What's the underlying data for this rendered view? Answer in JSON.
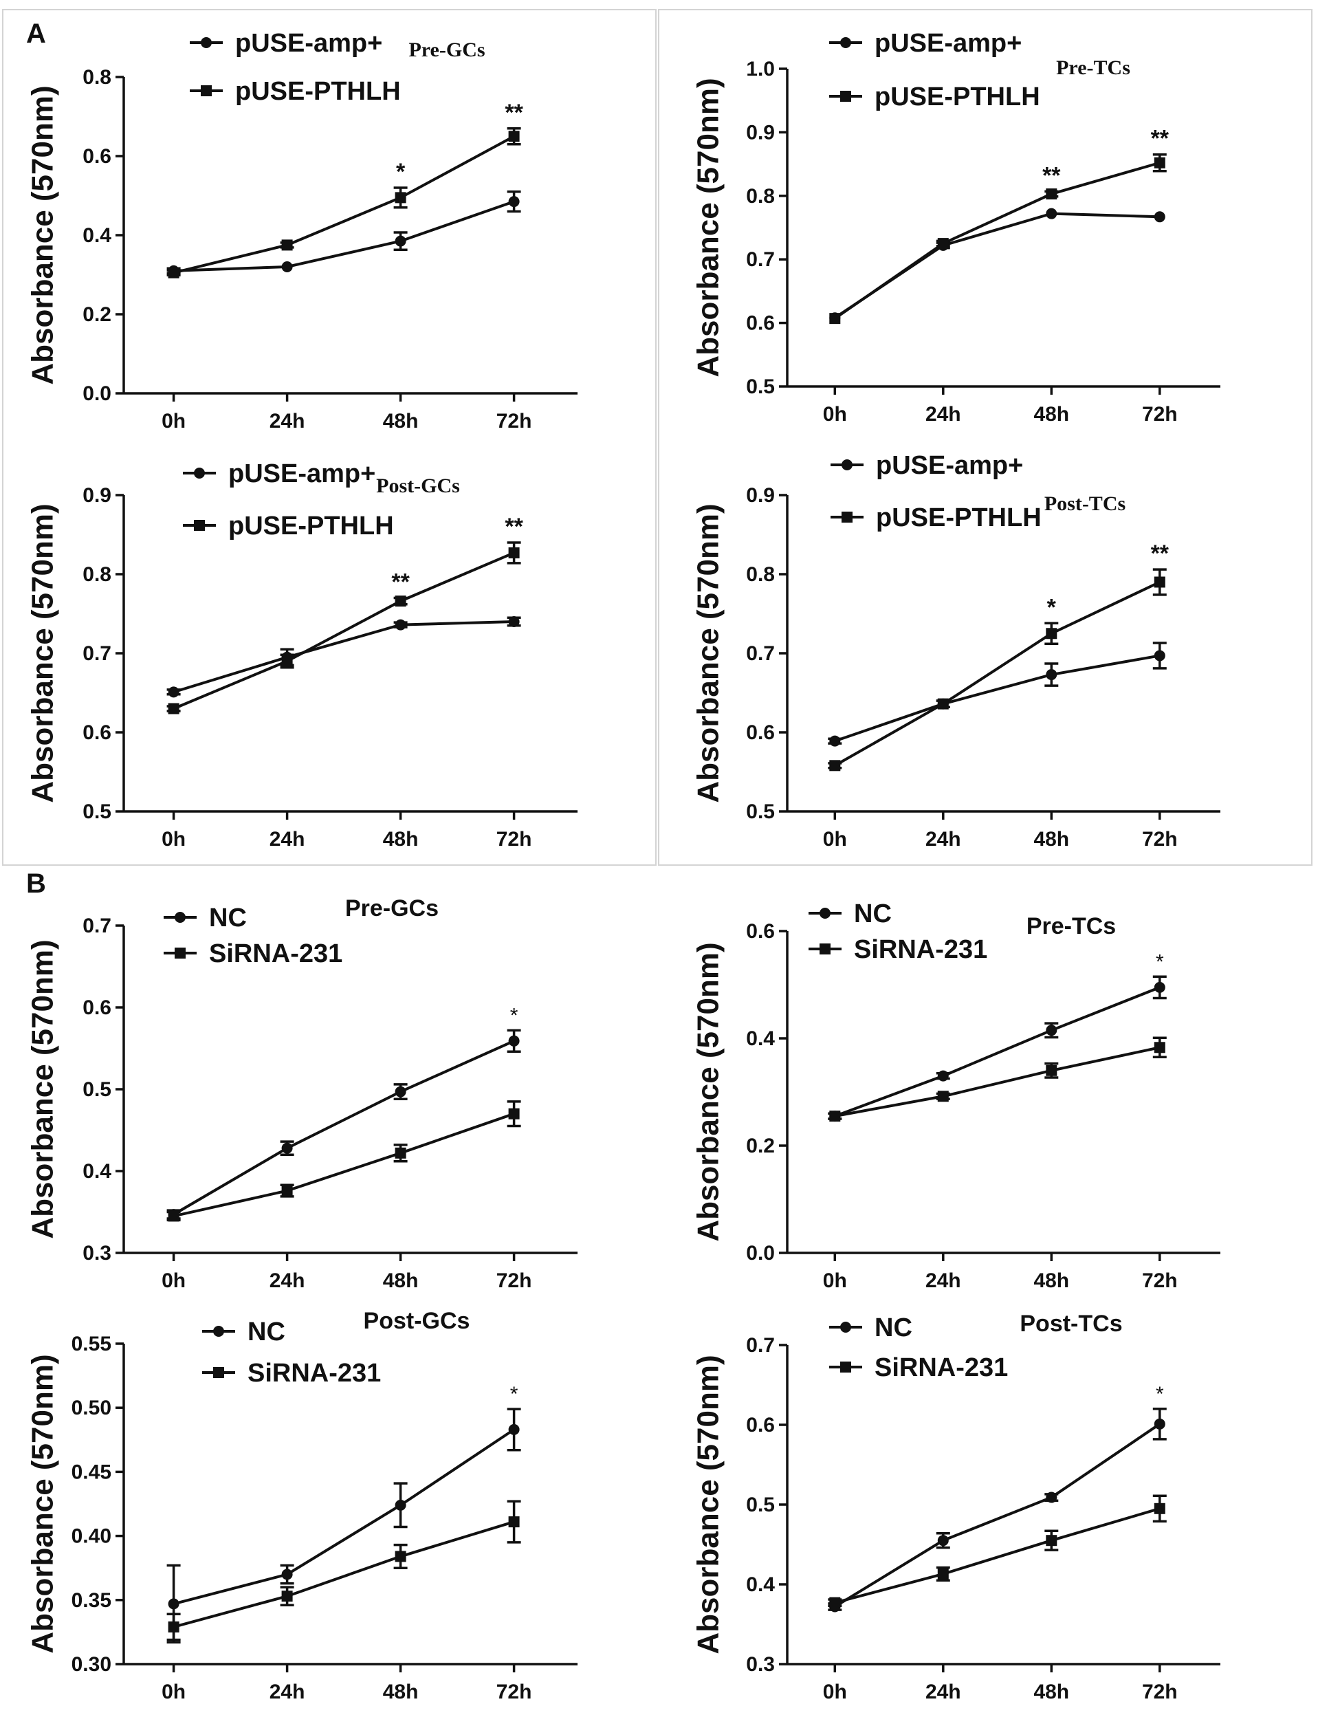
{
  "panel_labels": [
    "A",
    "B"
  ],
  "chart_data": [
    {
      "type": "line",
      "title": "Pre-GCs",
      "ylabel": "Absorbance (570nm)",
      "xlabel": "",
      "categories": [
        "0h",
        "24h",
        "48h",
        "72h"
      ],
      "ylim": [
        0.0,
        0.8
      ],
      "yticks": [
        "0.0",
        "0.2",
        "0.4",
        "0.6",
        "0.8"
      ],
      "legend": "top-left",
      "series": [
        {
          "name": "pUSE-amp+",
          "marker": "circle",
          "values": [
            0.31,
            0.32,
            0.385,
            0.485
          ],
          "errors": [
            0.006,
            0.005,
            0.022,
            0.025
          ]
        },
        {
          "name": "pUSE-PTHLH",
          "marker": "square",
          "values": [
            0.305,
            0.375,
            0.495,
            0.65
          ],
          "errors": [
            0.006,
            0.006,
            0.025,
            0.02
          ]
        }
      ],
      "annotations": [
        "",
        "",
        "*",
        "**"
      ]
    },
    {
      "type": "line",
      "title": "Pre-TCs",
      "ylabel": "Absorbance (570nm)",
      "xlabel": "",
      "categories": [
        "0h",
        "24h",
        "48h",
        "72h"
      ],
      "ylim": [
        0.5,
        1.0
      ],
      "yticks": [
        "0.5",
        "0.6",
        "0.7",
        "0.8",
        "0.9",
        "1.0"
      ],
      "legend": "top-left",
      "series": [
        {
          "name": "pUSE-amp+",
          "marker": "circle",
          "values": [
            0.608,
            0.722,
            0.772,
            0.767
          ],
          "errors": [
            0.003,
            0.004,
            0.003,
            0.003
          ]
        },
        {
          "name": "pUSE-PTHLH",
          "marker": "square",
          "values": [
            0.607,
            0.725,
            0.803,
            0.852
          ],
          "errors": [
            0.003,
            0.004,
            0.004,
            0.013
          ]
        }
      ],
      "annotations": [
        "",
        "",
        "**",
        "**"
      ]
    },
    {
      "type": "line",
      "title": "Post-GCs",
      "ylabel": "Absorbance (570nm)",
      "xlabel": "",
      "categories": [
        "0h",
        "24h",
        "48h",
        "72h"
      ],
      "ylim": [
        0.5,
        0.9
      ],
      "yticks": [
        "0.5",
        "0.6",
        "0.7",
        "0.8",
        "0.9"
      ],
      "legend": "top-left",
      "series": [
        {
          "name": "pUSE-amp+",
          "marker": "circle",
          "values": [
            0.651,
            0.695,
            0.736,
            0.74
          ],
          "errors": [
            0.003,
            0.01,
            0.003,
            0.005
          ]
        },
        {
          "name": "pUSE-PTHLH",
          "marker": "square",
          "values": [
            0.63,
            0.69,
            0.766,
            0.827
          ],
          "errors": [
            0.003,
            0.008,
            0.004,
            0.013
          ]
        }
      ],
      "annotations": [
        "",
        "",
        "**",
        "**"
      ]
    },
    {
      "type": "line",
      "title": "Post-TCs",
      "ylabel": "Absorbance (570nm)",
      "xlabel": "",
      "categories": [
        "0h",
        "24h",
        "48h",
        "72h"
      ],
      "ylim": [
        0.5,
        0.9
      ],
      "yticks": [
        "0.5",
        "0.6",
        "0.7",
        "0.8",
        "0.9"
      ],
      "legend": "top-left",
      "series": [
        {
          "name": "pUSE-amp+",
          "marker": "circle",
          "values": [
            0.589,
            0.636,
            0.673,
            0.697
          ],
          "errors": [
            0.003,
            0.004,
            0.014,
            0.016
          ]
        },
        {
          "name": "pUSE-PTHLH",
          "marker": "square",
          "values": [
            0.558,
            0.636,
            0.725,
            0.79
          ],
          "errors": [
            0.003,
            0.004,
            0.013,
            0.016
          ]
        }
      ],
      "annotations": [
        "",
        "",
        "*",
        "**"
      ]
    },
    {
      "type": "line",
      "title": "Pre-GCs",
      "ylabel": "Absorbance (570nm)",
      "xlabel": "",
      "categories": [
        "0h",
        "24h",
        "48h",
        "72h"
      ],
      "ylim": [
        0.3,
        0.7
      ],
      "yticks": [
        "0.3",
        "0.4",
        "0.5",
        "0.6",
        "0.7"
      ],
      "legend": "top-left",
      "series": [
        {
          "name": "NC",
          "marker": "circle",
          "values": [
            0.347,
            0.428,
            0.497,
            0.559
          ],
          "errors": [
            0.005,
            0.008,
            0.009,
            0.013
          ]
        },
        {
          "name": "SiRNA-231",
          "marker": "square",
          "values": [
            0.345,
            0.376,
            0.422,
            0.47
          ],
          "errors": [
            0.005,
            0.007,
            0.01,
            0.015
          ]
        }
      ],
      "annotations": [
        "",
        "",
        "",
        "*"
      ]
    },
    {
      "type": "line",
      "title": "Pre-TCs",
      "ylabel": "Absorbance (570nm)",
      "xlabel": "",
      "categories": [
        "0h",
        "24h",
        "48h",
        "72h"
      ],
      "ylim": [
        0.0,
        0.6
      ],
      "yticks": [
        "0.0",
        "0.2",
        "0.4",
        "0.6"
      ],
      "legend": "top-left",
      "series": [
        {
          "name": "NC",
          "marker": "circle",
          "values": [
            0.255,
            0.33,
            0.415,
            0.495
          ],
          "errors": [
            0.005,
            0.005,
            0.013,
            0.02
          ]
        },
        {
          "name": "SiRNA-231",
          "marker": "square",
          "values": [
            0.255,
            0.292,
            0.34,
            0.383
          ],
          "errors": [
            0.005,
            0.005,
            0.013,
            0.018
          ]
        }
      ],
      "annotations": [
        "",
        "",
        "",
        "*"
      ]
    },
    {
      "type": "line",
      "title": "Post-GCs",
      "ylabel": "Absorbance (570nm)",
      "xlabel": "",
      "categories": [
        "0h",
        "24h",
        "48h",
        "72h"
      ],
      "ylim": [
        0.3,
        0.55
      ],
      "yticks": [
        "0.30",
        "0.35",
        "0.40",
        "0.45",
        "0.50",
        "0.55"
      ],
      "legend": "top-left",
      "series": [
        {
          "name": "NC",
          "marker": "circle",
          "values": [
            0.347,
            0.37,
            0.424,
            0.483
          ],
          "errors": [
            0.03,
            0.007,
            0.017,
            0.016
          ]
        },
        {
          "name": "SiRNA-231",
          "marker": "square",
          "values": [
            0.329,
            0.353,
            0.384,
            0.411
          ],
          "errors": [
            0.01,
            0.007,
            0.009,
            0.016
          ]
        }
      ],
      "annotations": [
        "",
        "",
        "",
        "*"
      ]
    },
    {
      "type": "line",
      "title": "Post-TCs",
      "ylabel": "Absorbance (570nm)",
      "xlabel": "",
      "categories": [
        "0h",
        "24h",
        "48h",
        "72h"
      ],
      "ylim": [
        0.3,
        0.7
      ],
      "yticks": [
        "0.3",
        "0.4",
        "0.5",
        "0.6",
        "0.7"
      ],
      "legend": "top-left",
      "series": [
        {
          "name": "NC",
          "marker": "circle",
          "values": [
            0.372,
            0.455,
            0.509,
            0.601
          ],
          "errors": [
            0.004,
            0.009,
            0.004,
            0.019
          ]
        },
        {
          "name": "SiRNA-231",
          "marker": "square",
          "values": [
            0.377,
            0.413,
            0.455,
            0.495
          ],
          "errors": [
            0.004,
            0.008,
            0.012,
            0.016
          ]
        }
      ],
      "annotations": [
        "",
        "",
        "",
        "*"
      ]
    }
  ]
}
